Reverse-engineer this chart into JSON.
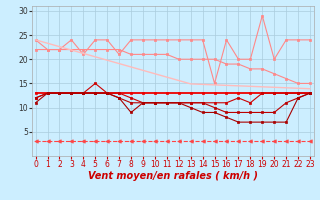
{
  "x": [
    0,
    1,
    2,
    3,
    4,
    5,
    6,
    7,
    8,
    9,
    10,
    11,
    12,
    13,
    14,
    15,
    16,
    17,
    18,
    19,
    20,
    21,
    22,
    23
  ],
  "series": [
    {
      "label": "rafales_pink",
      "color": "#ff8888",
      "linewidth": 0.8,
      "marker": "s",
      "markersize": 2.0,
      "linestyle": "-",
      "y": [
        24,
        22,
        22,
        24,
        21,
        24,
        24,
        21,
        24,
        24,
        24,
        24,
        24,
        24,
        24,
        15,
        24,
        20,
        20,
        29,
        20,
        24,
        24,
        24
      ]
    },
    {
      "label": "moyen_pink",
      "color": "#ff8888",
      "linewidth": 0.8,
      "marker": "s",
      "markersize": 2.0,
      "linestyle": "-",
      "y": [
        22,
        22,
        22,
        22,
        22,
        22,
        22,
        22,
        21,
        21,
        21,
        21,
        20,
        20,
        20,
        20,
        19,
        19,
        18,
        18,
        17,
        16,
        15,
        15
      ]
    },
    {
      "label": "trend_line",
      "color": "#ffbbbb",
      "linewidth": 1.0,
      "marker": null,
      "markersize": 0,
      "linestyle": "-",
      "y": [
        24.0,
        23.3,
        22.6,
        21.9,
        21.2,
        20.5,
        19.8,
        19.1,
        18.4,
        17.7,
        17.0,
        16.3,
        15.6,
        14.9,
        14.8,
        14.7,
        14.6,
        14.5,
        14.4,
        14.3,
        14.2,
        14.1,
        14.0,
        13.9
      ]
    },
    {
      "label": "const_red",
      "color": "#ee0000",
      "linewidth": 1.3,
      "marker": "s",
      "markersize": 2.0,
      "linestyle": "-",
      "y": [
        13,
        13,
        13,
        13,
        13,
        13,
        13,
        13,
        13,
        13,
        13,
        13,
        13,
        13,
        13,
        13,
        13,
        13,
        13,
        13,
        13,
        13,
        13,
        13
      ]
    },
    {
      "label": "series_dark1",
      "color": "#cc0000",
      "linewidth": 0.8,
      "marker": "s",
      "markersize": 2.0,
      "linestyle": "-",
      "y": [
        12,
        13,
        13,
        13,
        13,
        15,
        13,
        13,
        12,
        11,
        11,
        11,
        11,
        11,
        11,
        11,
        11,
        12,
        11,
        13,
        13,
        13,
        13,
        13
      ]
    },
    {
      "label": "series_dark2",
      "color": "#bb0000",
      "linewidth": 0.8,
      "marker": "s",
      "markersize": 2.0,
      "linestyle": "-",
      "y": [
        12,
        13,
        13,
        13,
        13,
        13,
        13,
        12,
        11,
        11,
        11,
        11,
        11,
        11,
        11,
        10,
        9,
        9,
        9,
        9,
        9,
        11,
        12,
        13
      ]
    },
    {
      "label": "series_dark3",
      "color": "#aa0000",
      "linewidth": 0.8,
      "marker": "s",
      "markersize": 2.0,
      "linestyle": "-",
      "y": [
        11,
        13,
        13,
        13,
        13,
        13,
        13,
        12,
        9,
        11,
        11,
        11,
        11,
        10,
        9,
        9,
        8,
        7,
        7,
        7,
        7,
        7,
        12,
        13
      ]
    },
    {
      "label": "dashed_arrows",
      "color": "#ff4444",
      "linewidth": 0.8,
      "marker": "<",
      "markersize": 2.5,
      "linestyle": "--",
      "y": [
        3,
        3,
        3,
        3,
        3,
        3,
        3,
        3,
        3,
        3,
        3,
        3,
        3,
        3,
        3,
        3,
        3,
        3,
        3,
        3,
        3,
        3,
        3,
        3
      ]
    }
  ],
  "xlabel": "Vent moyen/en rafales ( km/h )",
  "xlim": [
    -0.3,
    23.3
  ],
  "ylim": [
    0,
    31
  ],
  "yticks": [
    5,
    10,
    15,
    20,
    25,
    30
  ],
  "xticks": [
    0,
    1,
    2,
    3,
    4,
    5,
    6,
    7,
    8,
    9,
    10,
    11,
    12,
    13,
    14,
    15,
    16,
    17,
    18,
    19,
    20,
    21,
    22,
    23
  ],
  "bg_color": "#cceeff",
  "grid_color": "#aaccdd",
  "tick_label_fontsize": 5.5,
  "xlabel_fontsize": 7,
  "xlabel_color": "#cc0000"
}
